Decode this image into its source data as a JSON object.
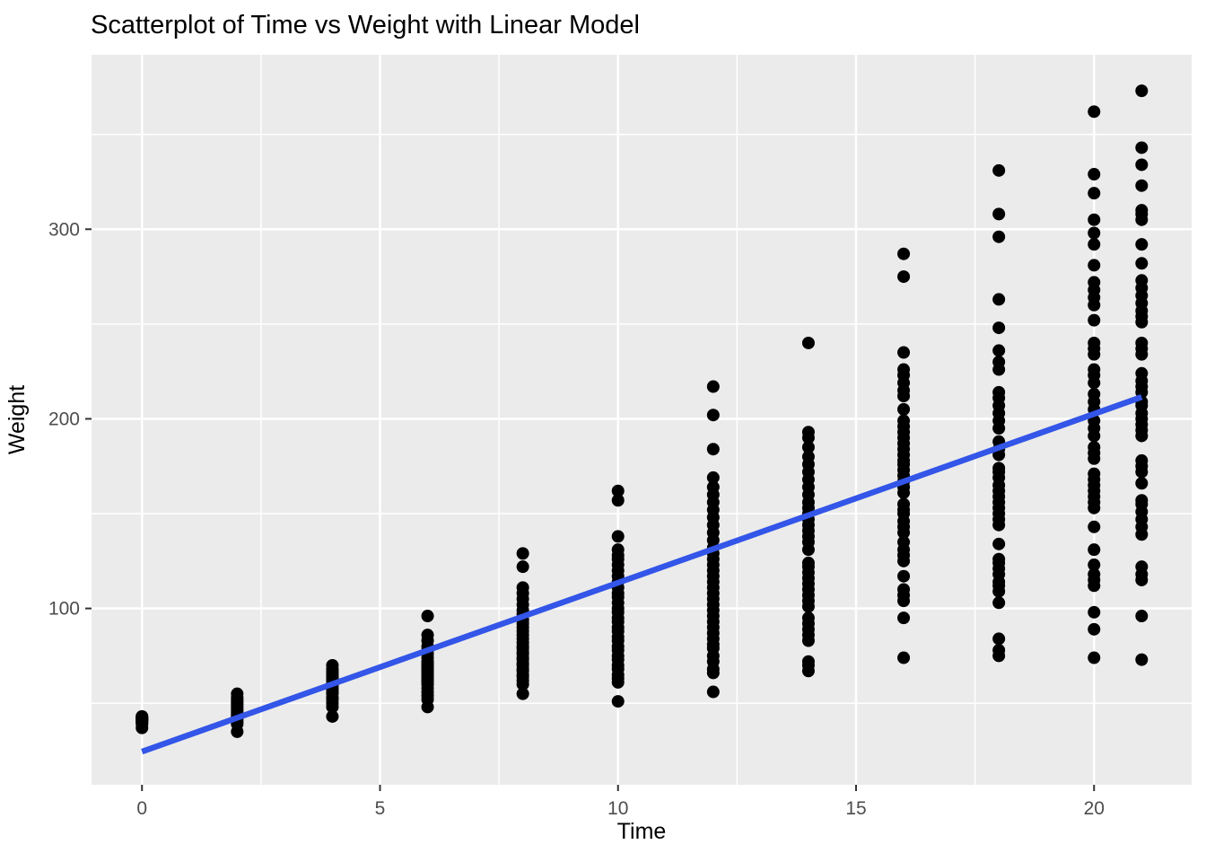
{
  "chart_data": {
    "type": "scatter",
    "title": "Scatterplot of Time vs Weight with Linear Model",
    "xlabel": "Time",
    "ylabel": "Weight",
    "xlim": [
      -1.06,
      22.05
    ],
    "ylim": [
      7,
      392
    ],
    "x_ticks": [
      0,
      5,
      10,
      15,
      20
    ],
    "y_ticks": [
      100,
      200,
      300
    ],
    "x_minor_ticks": [
      2.5,
      7.5,
      12.5,
      17.5
    ],
    "y_minor_ticks": [
      50,
      150,
      250,
      350
    ],
    "grid": true,
    "legend": "none",
    "colors": {
      "panel_bg": "#EBEBEB",
      "grid": "#FFFFFF",
      "point": "#000000",
      "line": "#3355E8",
      "axis_text": "#4D4D4D",
      "tick_mark": "#333333",
      "title_text": "#000000"
    },
    "point_radius": 7,
    "series": [
      {
        "name": "observations",
        "type": "scatter",
        "groups": [
          {
            "time": 0,
            "weights": [
              37,
              39,
              40,
              40,
              41,
              41,
              41,
              42,
              42,
              42,
              43,
              43
            ]
          },
          {
            "time": 2,
            "weights": [
              35,
              39,
              40,
              41,
              42,
              43,
              43,
              44,
              45,
              46,
              47,
              48,
              49,
              50,
              51,
              52,
              53,
              55
            ]
          },
          {
            "time": 4,
            "weights": [
              43,
              48,
              50,
              52,
              53,
              55,
              56,
              57,
              58,
              59,
              60,
              61,
              62,
              63,
              64,
              65,
              66,
              67,
              68,
              70
            ]
          },
          {
            "time": 6,
            "weights": [
              48,
              52,
              54,
              56,
              58,
              60,
              61,
              62,
              63,
              64,
              65,
              66,
              67,
              68,
              69,
              70,
              71,
              72,
              74,
              76,
              78,
              80,
              83,
              86,
              96
            ]
          },
          {
            "time": 8,
            "weights": [
              55,
              60,
              62,
              64,
              65,
              67,
              68,
              70,
              71,
              73,
              74,
              76,
              77,
              79,
              80,
              82,
              84,
              86,
              88,
              90,
              92,
              94,
              97,
              99,
              102,
              105,
              108,
              111,
              122,
              129
            ]
          },
          {
            "time": 10,
            "weights": [
              51,
              61,
              63,
              65,
              68,
              70,
              73,
              75,
              78,
              80,
              83,
              85,
              88,
              90,
              93,
              95,
              98,
              100,
              103,
              106,
              108,
              111,
              114,
              117,
              120,
              123,
              126,
              128,
              131,
              138,
              157,
              162
            ]
          },
          {
            "time": 12,
            "weights": [
              56,
              66,
              68,
              72,
              75,
              79,
              81,
              84,
              87,
              90,
              93,
              96,
              99,
              102,
              105,
              108,
              111,
              114,
              117,
              120,
              123,
              126,
              129,
              132,
              136,
              140,
              144,
              148,
              152,
              156,
              160,
              164,
              169,
              184,
              202,
              217
            ]
          },
          {
            "time": 14,
            "weights": [
              67,
              70,
              72,
              83,
              86,
              89,
              92,
              95,
              101,
              104,
              107,
              110,
              113,
              116,
              119,
              122,
              124,
              131,
              135,
              138,
              141,
              144,
              147,
              150,
              153,
              156,
              160,
              164,
              168,
              172,
              176,
              180,
              185,
              190,
              193,
              240
            ]
          },
          {
            "time": 16,
            "weights": [
              74,
              95,
              104,
              107,
              110,
              117,
              125,
              128,
              131,
              135,
              140,
              143,
              146,
              150,
              152,
              155,
              161,
              164,
              167,
              170,
              173,
              176,
              178,
              181,
              184,
              187,
              190,
              193,
              196,
              199,
              205,
              212,
              215,
              219,
              223,
              226,
              235,
              275,
              287
            ]
          },
          {
            "time": 18,
            "weights": [
              75,
              78,
              84,
              103,
              109,
              112,
              114,
              118,
              121,
              124,
              126,
              134,
              144,
              147,
              150,
              153,
              156,
              159,
              162,
              165,
              169,
              172,
              174,
              181,
              184,
              188,
              195,
              199,
              203,
              207,
              211,
              214,
              226,
              230,
              236,
              248,
              263,
              296,
              308,
              331
            ]
          },
          {
            "time": 20,
            "weights": [
              74,
              89,
              98,
              112,
              115,
              118,
              123,
              131,
              143,
              153,
              156,
              159,
              162,
              165,
              168,
              171,
              179,
              182,
              185,
              191,
              195,
              199,
              205,
              209,
              213,
              219,
              223,
              226,
              234,
              237,
              240,
              252,
              260,
              264,
              268,
              272,
              281,
              292,
              298,
              305,
              319,
              329,
              362
            ]
          },
          {
            "time": 21,
            "weights": [
              73,
              96,
              115,
              118,
              122,
              139,
              143,
              147,
              151,
              155,
              157,
              166,
              172,
              175,
              178,
              191,
              194,
              197,
              200,
              203,
              207,
              209,
              214,
              217,
              220,
              224,
              234,
              237,
              240,
              251,
              254,
              257,
              261,
              265,
              269,
              273,
              282,
              292,
              305,
              308,
              310,
              323,
              334,
              343,
              373
            ]
          }
        ]
      },
      {
        "name": "linear-model",
        "type": "line",
        "x": [
          0,
          21
        ],
        "y": [
          24.5,
          211.5
        ]
      }
    ]
  }
}
